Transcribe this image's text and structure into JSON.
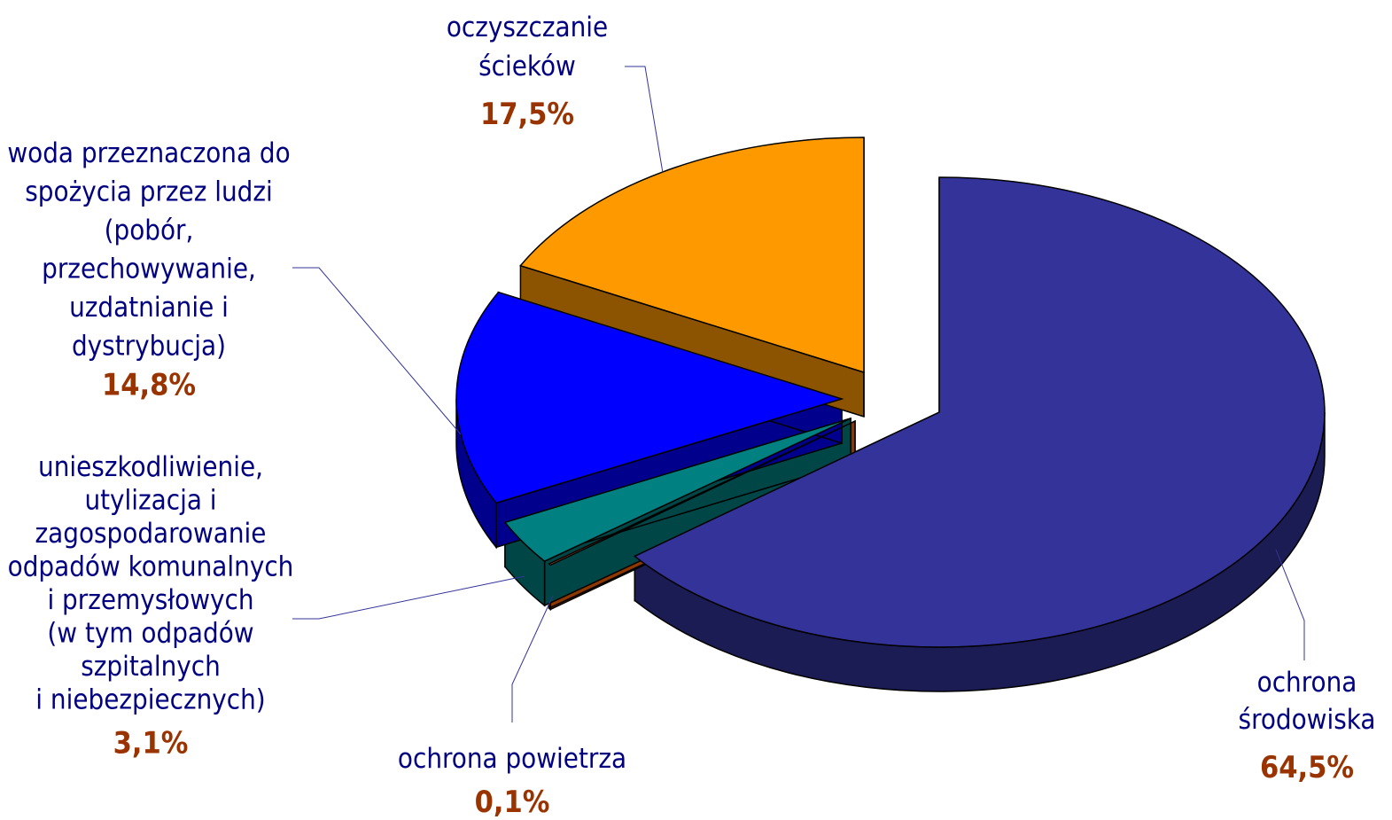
{
  "chart_data": {
    "type": "pie",
    "categories": [
      "ochrona\nśrodowiska",
      "ochrona powietrza",
      "unieszkodliwienie,\nutylizacja i\nzagospodarowanie\nodpadów komunalnych\ni przemysłowych\n(w tym odpadów\nszpitalnych\ni niebezpiecznych)",
      "woda przeznaczona do\nspożycia przez ludzi\n(pobór,\nprzechowywanie,\nuzdatnianie i\ndystrybucja)",
      "oczyszczanie\nścieków"
    ],
    "values": [
      64.5,
      0.1,
      3.1,
      14.8,
      17.5
    ],
    "value_labels": [
      "64,5%",
      "0,1%",
      "3,1%",
      "14,8%",
      "17,5%"
    ],
    "colors": [
      "#333399",
      "#ff6600",
      "#008080",
      "#0000ff",
      "#ff9900"
    ]
  }
}
